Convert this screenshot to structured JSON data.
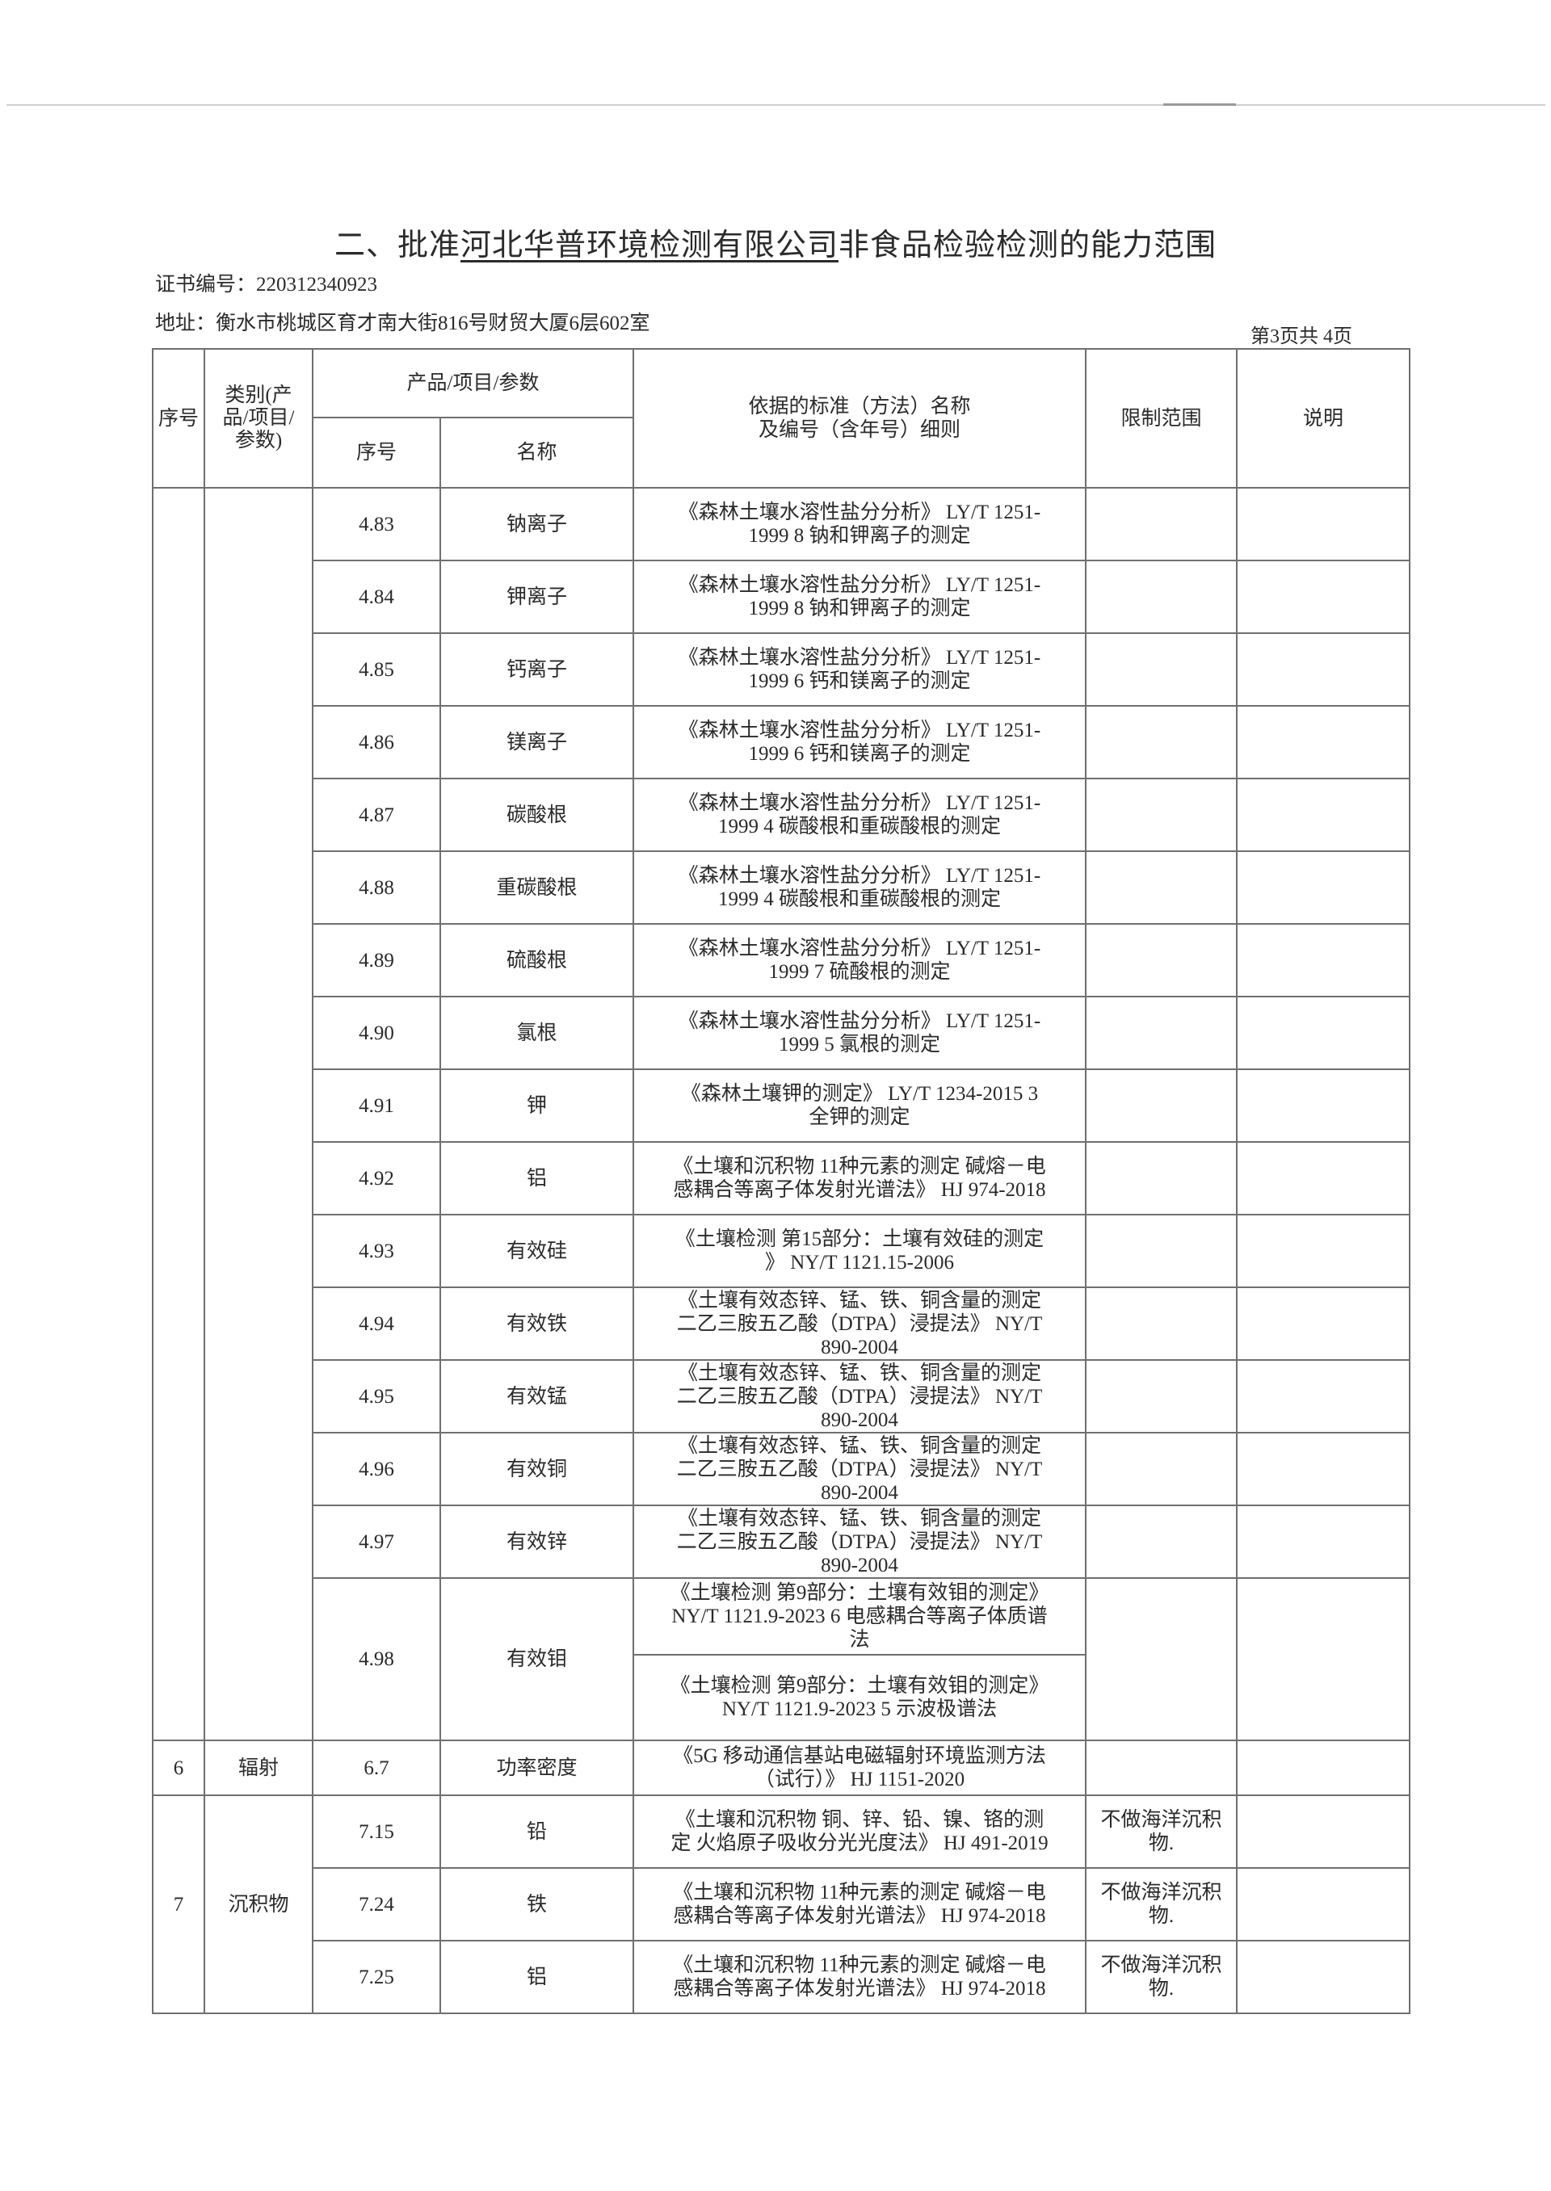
{
  "header": {
    "title_prefix": "二、批准",
    "title_company": "河北华普环境检测有限公司",
    "title_suffix": "非食品检验检测的能力范围",
    "cert_label": "证书编号：",
    "cert_no": "220312340923",
    "addr_label": "地址：",
    "address": "衡水市桃城区育才南大街816号财贸大厦6层602室",
    "page_info": "第3页共 4页"
  },
  "columns": {
    "no": "序号",
    "category": "类别(产品/项目/参数)",
    "product_group": "产品/项目/参数",
    "item_no": "序号",
    "item_name": "名称",
    "standard": "依据的标准（方法）名称\n及编号（含年号）细则",
    "limit": "限制范围",
    "note": "说明"
  },
  "groups": [
    {
      "no": "",
      "category": "",
      "items": [
        {
          "id": "4.83",
          "name": "钠离子",
          "methods": [
            "《森林土壤水溶性盐分分析》 LY/T 1251-\n1999 8 钠和钾离子的测定"
          ],
          "limit": "",
          "note": ""
        },
        {
          "id": "4.84",
          "name": "钾离子",
          "methods": [
            "《森林土壤水溶性盐分分析》 LY/T 1251-\n1999 8 钠和钾离子的测定"
          ],
          "limit": "",
          "note": ""
        },
        {
          "id": "4.85",
          "name": "钙离子",
          "methods": [
            "《森林土壤水溶性盐分分析》 LY/T 1251-\n1999 6 钙和镁离子的测定"
          ],
          "limit": "",
          "note": ""
        },
        {
          "id": "4.86",
          "name": "镁离子",
          "methods": [
            "《森林土壤水溶性盐分分析》 LY/T 1251-\n1999 6 钙和镁离子的测定"
          ],
          "limit": "",
          "note": ""
        },
        {
          "id": "4.87",
          "name": "碳酸根",
          "methods": [
            "《森林土壤水溶性盐分分析》 LY/T 1251-\n1999 4 碳酸根和重碳酸根的测定"
          ],
          "limit": "",
          "note": ""
        },
        {
          "id": "4.88",
          "name": "重碳酸根",
          "methods": [
            "《森林土壤水溶性盐分分析》 LY/T 1251-\n1999 4 碳酸根和重碳酸根的测定"
          ],
          "limit": "",
          "note": ""
        },
        {
          "id": "4.89",
          "name": "硫酸根",
          "methods": [
            "《森林土壤水溶性盐分分析》 LY/T 1251-\n1999 7 硫酸根的测定"
          ],
          "limit": "",
          "note": ""
        },
        {
          "id": "4.90",
          "name": "氯根",
          "methods": [
            "《森林土壤水溶性盐分分析》 LY/T 1251-\n1999 5 氯根的测定"
          ],
          "limit": "",
          "note": ""
        },
        {
          "id": "4.91",
          "name": "钾",
          "methods": [
            "《森林土壤钾的测定》 LY/T 1234-2015 3\n全钾的测定"
          ],
          "limit": "",
          "note": ""
        },
        {
          "id": "4.92",
          "name": "铝",
          "methods": [
            "《土壤和沉积物 11种元素的测定 碱熔－电\n感耦合等离子体发射光谱法》 HJ 974-2018"
          ],
          "limit": "",
          "note": ""
        },
        {
          "id": "4.93",
          "name": "有效硅",
          "methods": [
            "《土壤检测 第15部分：土壤有效硅的测定\n》 NY/T 1121.15-2006"
          ],
          "limit": "",
          "note": ""
        },
        {
          "id": "4.94",
          "name": "有效铁",
          "methods": [
            "《土壤有效态锌、锰、铁、铜含量的测定\n二乙三胺五乙酸（DTPA）浸提法》 NY/T\n890-2004"
          ],
          "limit": "",
          "note": ""
        },
        {
          "id": "4.95",
          "name": "有效锰",
          "methods": [
            "《土壤有效态锌、锰、铁、铜含量的测定\n二乙三胺五乙酸（DTPA）浸提法》 NY/T\n890-2004"
          ],
          "limit": "",
          "note": ""
        },
        {
          "id": "4.96",
          "name": "有效铜",
          "methods": [
            "《土壤有效态锌、锰、铁、铜含量的测定\n二乙三胺五乙酸（DTPA）浸提法》 NY/T\n890-2004"
          ],
          "limit": "",
          "note": ""
        },
        {
          "id": "4.97",
          "name": "有效锌",
          "methods": [
            "《土壤有效态锌、锰、铁、铜含量的测定\n二乙三胺五乙酸（DTPA）浸提法》 NY/T\n890-2004"
          ],
          "limit": "",
          "note": ""
        },
        {
          "id": "4.98",
          "name": "有效钼",
          "methods": [
            "《土壤检测 第9部分：土壤有效钼的测定》\nNY/T 1121.9-2023 6 电感耦合等离子体质谱\n法",
            "《土壤检测 第9部分：土壤有效钼的测定》\nNY/T 1121.9-2023 5 示波极谱法"
          ],
          "limit": "",
          "note": ""
        }
      ]
    },
    {
      "no": "6",
      "category": "辐射",
      "items": [
        {
          "id": "6.7",
          "name": "功率密度",
          "methods": [
            "《5G 移动通信基站电磁辐射环境监测方法\n（试行）》 HJ 1151-2020"
          ],
          "limit": "",
          "note": ""
        }
      ]
    },
    {
      "no": "7",
      "category": "沉积物",
      "items": [
        {
          "id": "7.15",
          "name": "铅",
          "methods": [
            "《土壤和沉积物 铜、锌、铅、镍、铬的测\n定 火焰原子吸收分光光度法》 HJ 491-2019"
          ],
          "limit": "不做海洋沉积\n物.",
          "note": ""
        },
        {
          "id": "7.24",
          "name": "铁",
          "methods": [
            "《土壤和沉积物 11种元素的测定 碱熔－电\n感耦合等离子体发射光谱法》 HJ 974-2018"
          ],
          "limit": "不做海洋沉积\n物.",
          "note": ""
        },
        {
          "id": "7.25",
          "name": "铝",
          "methods": [
            "《土壤和沉积物 11种元素的测定 碱熔－电\n感耦合等离子体发射光谱法》 HJ 974-2018"
          ],
          "limit": "不做海洋沉积\n物.",
          "note": ""
        }
      ]
    }
  ]
}
